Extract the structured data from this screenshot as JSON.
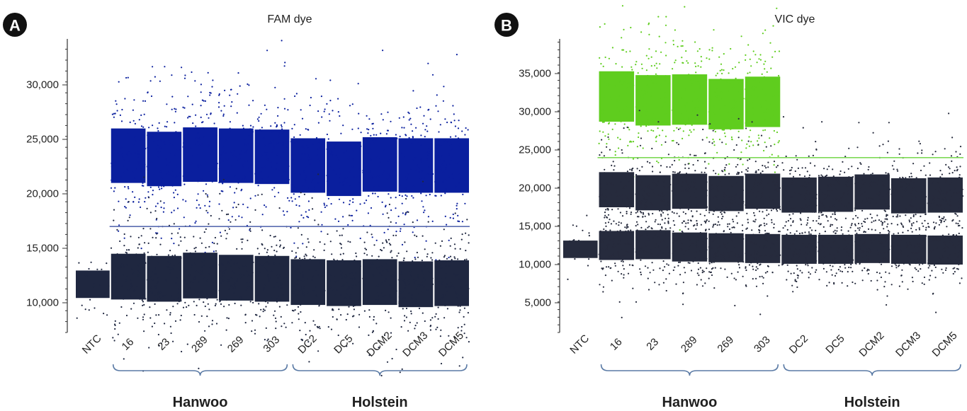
{
  "chart_data": [
    {
      "panel_label": "A",
      "type": "scatter",
      "title": "FAM dye",
      "xlabel": "",
      "ylabel": "",
      "ylim": [
        7500,
        34000
      ],
      "yticks": [
        "10,000",
        "15,000",
        "20,000",
        "25,000",
        "30,000"
      ],
      "categories": [
        "NTC",
        "16",
        "23",
        "289",
        "269",
        "303",
        "DC2",
        "DC5",
        "DCM2",
        "DCM3",
        "DCM5"
      ],
      "threshold": 17000,
      "threshold_color": "#5a6cb0",
      "series": [
        {
          "values_high_band": [
            null,
            23500,
            23200,
            23600,
            23500,
            23400,
            22600,
            22300,
            22700,
            22600,
            22600
          ],
          "color": "#0a1f9e"
        },
        {
          "values_low_band": [
            11700,
            12400,
            12200,
            12500,
            12300,
            12200,
            11900,
            11800,
            11900,
            11700,
            11800
          ],
          "color": "#1f2740"
        }
      ],
      "groups": [
        {
          "name": "Hanwoo",
          "from": "16",
          "to": "303"
        },
        {
          "name": "Holstein",
          "from": "DC2",
          "to": "DCM5"
        }
      ]
    },
    {
      "panel_label": "B",
      "type": "scatter",
      "title": "VIC dye",
      "xlabel": "",
      "ylabel": "",
      "ylim": [
        2500,
        39500
      ],
      "yticks": [
        "5,000",
        "10,000",
        "15,000",
        "20,000",
        "25,000",
        "30,000",
        "35,000"
      ],
      "categories": [
        "NTC",
        "16",
        "23",
        "289",
        "269",
        "303",
        "DC2",
        "DC5",
        "DCM2",
        "DCM3",
        "DCM5"
      ],
      "threshold": 24000,
      "threshold_color": "#7ed957",
      "series": [
        {
          "values_high_band": [
            null,
            32000,
            31500,
            31600,
            31000,
            31300,
            null,
            null,
            null,
            null,
            null
          ],
          "color": "#5fcd1e"
        },
        {
          "values_mid_band": [
            null,
            19800,
            19400,
            19600,
            19300,
            19600,
            19100,
            19200,
            19500,
            19000,
            19100
          ],
          "color": "#262b3d"
        },
        {
          "values_low_band": [
            12000,
            12500,
            12600,
            12300,
            12200,
            12100,
            12000,
            12000,
            12100,
            12000,
            11900
          ],
          "color": "#262b3d"
        }
      ],
      "groups": [
        {
          "name": "Hanwoo",
          "from": "16",
          "to": "303"
        },
        {
          "name": "Holstein",
          "from": "DC2",
          "to": "DCM5"
        }
      ]
    }
  ]
}
